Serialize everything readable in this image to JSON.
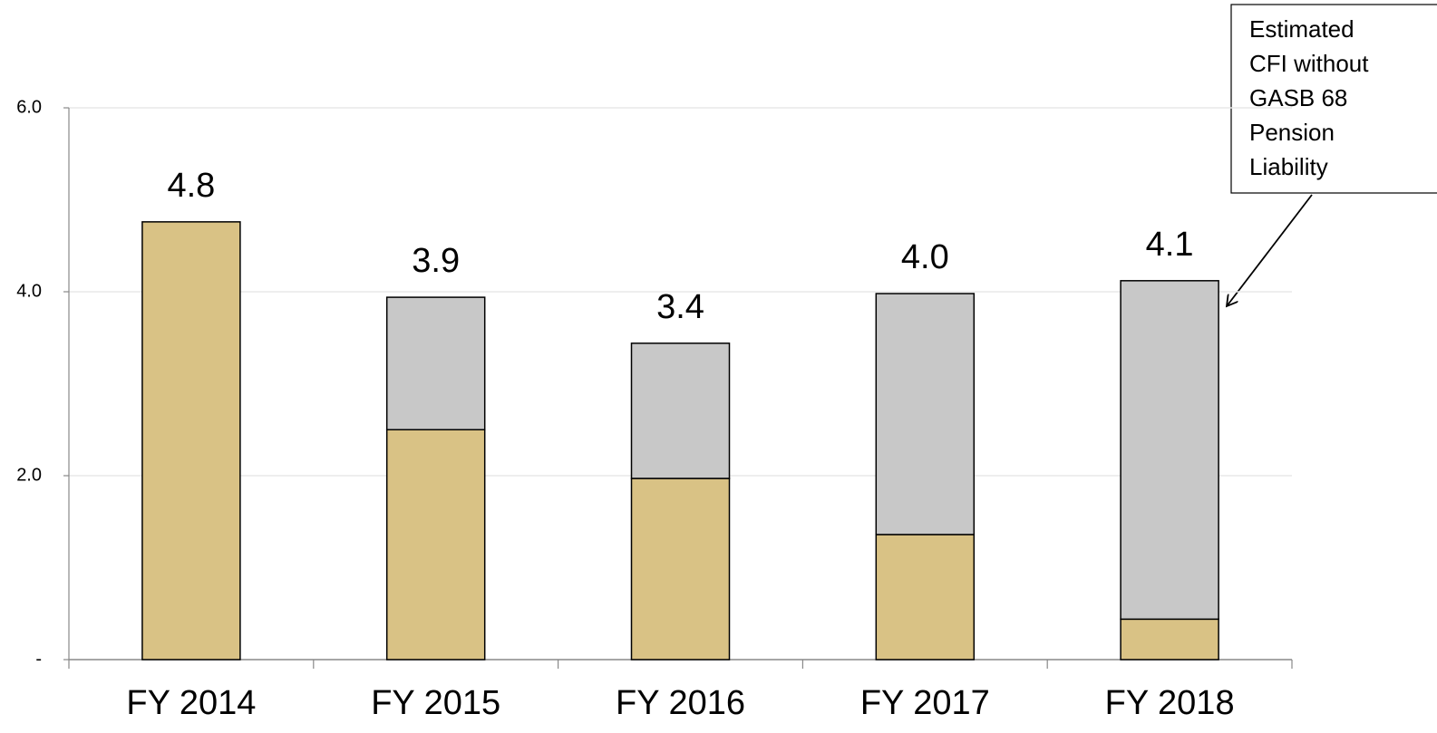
{
  "chart_data": {
    "type": "stacked_bar",
    "categories": [
      "FY 2014",
      "FY 2015",
      "FY 2016",
      "FY 2017",
      "FY 2018"
    ],
    "series": [
      {
        "color": "#d9c285",
        "values": [
          4.76,
          2.5,
          1.97,
          1.36,
          0.44
        ]
      },
      {
        "color": "#c8c8c8",
        "values": [
          0,
          1.44,
          1.47,
          2.62,
          3.68
        ]
      }
    ],
    "total_labels": [
      "4.8",
      "3.9",
      "3.4",
      "4.0",
      "4.1"
    ],
    "ylim": [
      0,
      6
    ],
    "yticks": [
      {
        "value": 0,
        "label": "-"
      },
      {
        "value": 2,
        "label": "2.0"
      },
      {
        "value": 4,
        "label": "4.0"
      },
      {
        "value": 6,
        "label": "6.0"
      }
    ],
    "grid": true,
    "annotation": [
      "Estimated",
      "CFI without",
      "GASB 68",
      "Pension",
      "Liability"
    ]
  }
}
